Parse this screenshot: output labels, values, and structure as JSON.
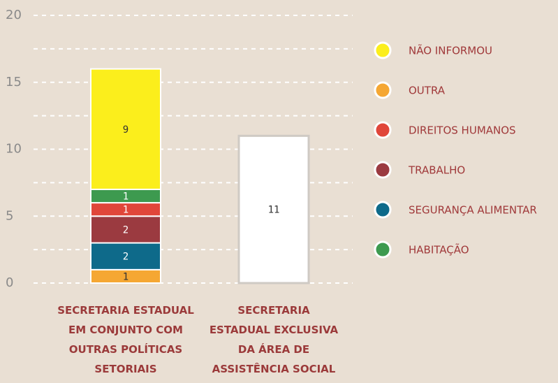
{
  "chart_data": {
    "type": "stacked-bar",
    "categories": [
      "SECRETARIA ESTADUAL\nEM CONJUNTO COM\nOUTRAS POLÍTICAS\nSETORIAIS",
      "SECRETARIA\nESTADUAL EXCLUSIVA\nDA ÁREA DE\nASSISTÊNCIA SOCIAL"
    ],
    "series": [
      {
        "name": "OUTRA",
        "color": "#f5a733",
        "values": [
          1,
          null
        ]
      },
      {
        "name": "SEGURANÇA ALIMENTAR",
        "color": "#0e6a8a",
        "values": [
          2,
          null
        ]
      },
      {
        "name": "TRABALHO",
        "color": "#9b3a40",
        "values": [
          2,
          null
        ]
      },
      {
        "name": "DIREITOS HUMANOS",
        "color": "#e0463a",
        "values": [
          1,
          null
        ]
      },
      {
        "name": "HABITAÇÃO",
        "color": "#3d9a4f",
        "values": [
          1,
          null
        ]
      },
      {
        "name": "NÃO INFORMOU",
        "color": "#fbee1c",
        "values": [
          9,
          null
        ]
      },
      {
        "color": "#ffffff",
        "values": [
          null,
          11
        ]
      }
    ],
    "legend_order": [
      5,
      0,
      3,
      2,
      1,
      4
    ],
    "ylim": [
      0,
      20
    ],
    "yticks": [
      0,
      5,
      10,
      15,
      20
    ],
    "minor_yticks": [
      2.5,
      7.5,
      12.5,
      17.5
    ],
    "grid": true,
    "legend": "right"
  }
}
